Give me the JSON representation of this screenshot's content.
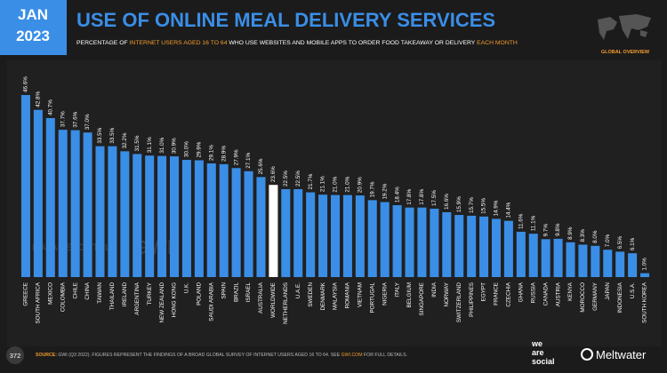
{
  "header": {
    "month": "JAN",
    "year": "2023",
    "badge": "GLOBAL OVERVIEW"
  },
  "chart_data": {
    "type": "bar",
    "title": "USE OF ONLINE MEAL DELIVERY SERVICES",
    "subtitle_parts": [
      "PERCENTAGE OF ",
      "INTERNET USERS AGED 16 TO 64",
      " WHO USE WEBSITES AND MOBILE APPS TO ORDER FOOD TAKEAWAY OR DELIVERY ",
      "EACH MONTH"
    ],
    "categories": [
      "GREECE",
      "SOUTH AFRICA",
      "MEXICO",
      "COLOMBIA",
      "CHILE",
      "CHINA",
      "TAIWAN",
      "THAILAND",
      "IRELAND",
      "ARGENTINA",
      "TURKEY",
      "NEW ZEALAND",
      "HONG KONG",
      "U.K.",
      "POLAND",
      "SAUDI ARABIA",
      "SPAIN",
      "BRAZIL",
      "ISRAEL",
      "AUSTRALIA",
      "WORLDWIDE",
      "NETHERLANDS",
      "U.A.E.",
      "SWEDEN",
      "DENMARK",
      "MALAYSIA",
      "ROMANIA",
      "VIETNAM",
      "PORTUGAL",
      "NIGERIA",
      "ITALY",
      "BELGIUM",
      "SINGAPORE",
      "INDIA",
      "NORWAY",
      "SWITZERLAND",
      "PHILIPPINES",
      "EGYPT",
      "FRANCE",
      "CZECHIA",
      "GHANA",
      "RUSSIA",
      "CANADA",
      "AUSTRIA",
      "KENYA",
      "MOROCCO",
      "GERMANY",
      "JAPAN",
      "INDONESIA",
      "U.S.A.",
      "SOUTH KOREA"
    ],
    "values": [
      46.6,
      42.8,
      40.7,
      37.7,
      37.6,
      37.0,
      33.5,
      33.5,
      32.2,
      31.5,
      31.1,
      31.0,
      30.9,
      30.0,
      29.9,
      29.1,
      28.9,
      27.9,
      27.1,
      25.6,
      23.6,
      22.5,
      22.5,
      21.7,
      21.1,
      21.0,
      21.0,
      20.9,
      19.7,
      19.2,
      18.4,
      17.8,
      17.8,
      17.5,
      16.6,
      15.9,
      15.7,
      15.5,
      14.9,
      14.4,
      11.6,
      11.1,
      9.7,
      9.8,
      8.9,
      8.3,
      8.0,
      7.0,
      6.5,
      6.1,
      1.0
    ],
    "value_labels": [
      "46.6%",
      "42.8%",
      "40.7%",
      "37.7%",
      "37.6%",
      "37.0%",
      "33.5%",
      "33.5%",
      "32.2%",
      "31.5%",
      "31.1%",
      "31.0%",
      "30.9%",
      "30.0%",
      "29.9%",
      "29.1%",
      "28.9%",
      "27.9%",
      "27.1%",
      "25.6%",
      "23.6%",
      "22.5%",
      "22.5%",
      "21.7%",
      "21.1%",
      "21.0%",
      "21.0%",
      "20.9%",
      "19.7%",
      "19.2%",
      "18.4%",
      "17.8%",
      "17.8%",
      "17.5%",
      "16.6%",
      "15.9%",
      "15.7%",
      "15.5%",
      "14.9%",
      "14.4%",
      "11.6%",
      "11.1%",
      "9.7%",
      "9.8%",
      "8.9%",
      "8.3%",
      "8.0%",
      "7.0%",
      "6.5%",
      "6.1%",
      "1.0%"
    ],
    "color": "#3a8ee6",
    "highlight_category_color": "#ffffff",
    "highlight_index": 20
  },
  "watermarks": [
    "DATAREPORTAL",
    "GWI."
  ],
  "footer": {
    "page": "372",
    "source_parts": [
      "SOURCE:",
      " GWI (Q3 2022). FIGURES REPRESENT THE FINDINGS OF A BROAD GLOBAL SURVEY OF INTERNET USERS AGED 16 TO 64. SEE ",
      "GWI.COM",
      " FOR FULL DETAILS."
    ],
    "brand1": [
      "we",
      "are",
      "social"
    ],
    "brand2": "Meltwater"
  }
}
